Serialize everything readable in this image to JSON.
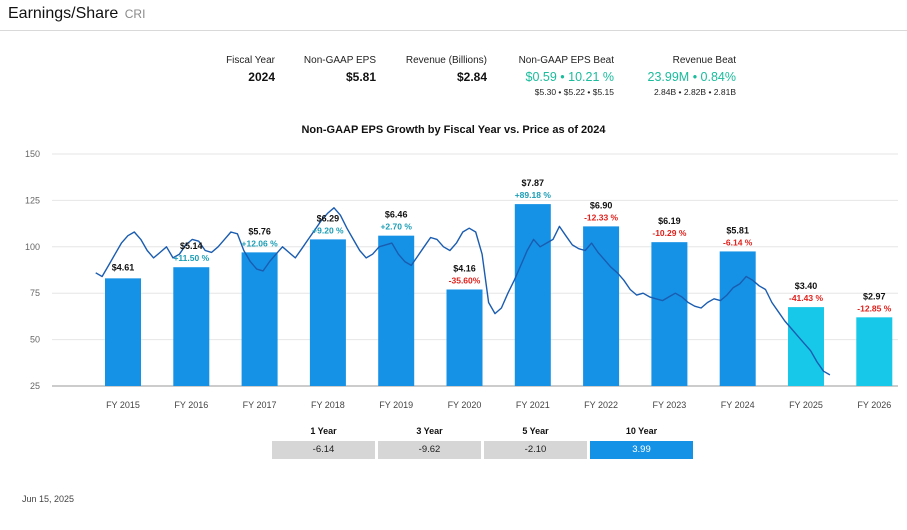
{
  "header": {
    "title": "Earnings/Share",
    "ticker": "CRI"
  },
  "summary": {
    "fiscal_year": {
      "label": "Fiscal Year",
      "value": "2024"
    },
    "eps": {
      "label": "Non-GAAP EPS",
      "value": "$5.81"
    },
    "revenue": {
      "label": "Revenue (Billions)",
      "value": "$2.84"
    },
    "eps_beat": {
      "label": "Non-GAAP EPS Beat",
      "value": "$0.59 • 10.21 %",
      "sub": "$5.30 • $5.22 • $5.15"
    },
    "revenue_beat": {
      "label": "Revenue Beat",
      "value": "23.99M • 0.84%",
      "sub": "2.84B • 2.82B • 2.81B"
    }
  },
  "colors": {
    "bar_actual": "#1592e6",
    "bar_estimate": "#17c8e8",
    "price_line": "#1a5cb0",
    "growth_positive": "#1a9db5",
    "growth_negative": "#e0201b",
    "tab_active": "#1592e6",
    "tab_inactive": "#d6d6d6"
  },
  "chart_data": {
    "type": "bar",
    "title": "Non-GAAP EPS Growth by Fiscal Year vs. Price as of 2024",
    "ylim": [
      25,
      150
    ],
    "y_ticks": [
      "150",
      "125",
      "100",
      "75",
      "50",
      "25"
    ],
    "grid": true,
    "categories": [
      "FY 2015",
      "FY 2016",
      "FY 2017",
      "FY 2018",
      "FY 2019",
      "FY 2020",
      "FY 2021",
      "FY 2022",
      "FY 2023",
      "FY 2024",
      "FY 2025",
      "FY 2026"
    ],
    "bar_heights": [
      83,
      89,
      97,
      104,
      106,
      77,
      123,
      111,
      102.5,
      97.5,
      67.5,
      62
    ],
    "estimate": [
      false,
      false,
      false,
      false,
      false,
      false,
      false,
      false,
      false,
      false,
      true,
      true
    ],
    "eps_labels": [
      "$4.61",
      "$5.14",
      "$5.76",
      "$6.29",
      "$6.46",
      "$4.16",
      "$7.87",
      "$6.90",
      "$6.19",
      "$5.81",
      "$3.40",
      "$2.97"
    ],
    "growth_labels": [
      "",
      "+11.50 %",
      "+12.06 %",
      "+9.20 %",
      "+2.70 %",
      "-35.60%",
      "+89.18 %",
      "-12.33 %",
      "-10.29 %",
      "-6.14 %",
      "-41.43 %",
      "-12.85 %"
    ],
    "price_series": {
      "x_start": 2014.6,
      "values": [
        86,
        84,
        90,
        96,
        102,
        106,
        108,
        104,
        98,
        94,
        97,
        100,
        94,
        96,
        101,
        104,
        103,
        98,
        97,
        100,
        104,
        108,
        107,
        98,
        92,
        88,
        87,
        92,
        96,
        100,
        97,
        94,
        99,
        104,
        109,
        114,
        118,
        121,
        117,
        110,
        104,
        98,
        94,
        96,
        100,
        101,
        102,
        96,
        92,
        90,
        95,
        100,
        105,
        104,
        100,
        98,
        102,
        108,
        110,
        108,
        96,
        70,
        64,
        67,
        75,
        82,
        90,
        98,
        104,
        100,
        102,
        104,
        111,
        106,
        101,
        99,
        98,
        102,
        97,
        93,
        89,
        86,
        82,
        77,
        74,
        75,
        73,
        72,
        71,
        73,
        75,
        73,
        70,
        68,
        67,
        70,
        72,
        71,
        74,
        78,
        80,
        84,
        82,
        79,
        77,
        70,
        65,
        60,
        56,
        52,
        48,
        44,
        38,
        33,
        31
      ]
    }
  },
  "returns": {
    "labels": [
      "1 Year",
      "3 Year",
      "5 Year",
      "10 Year"
    ],
    "values": [
      "-6.14",
      "-9.62",
      "-2.10",
      "3.99"
    ],
    "active_index": 3
  },
  "footer": {
    "date": "Jun 15, 2025"
  }
}
